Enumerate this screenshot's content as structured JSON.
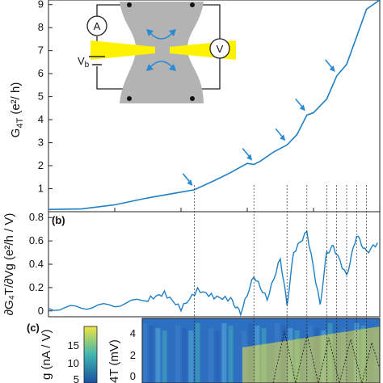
{
  "figure": {
    "panel_a": {
      "label": "",
      "ylabel_main": "G",
      "ylabel_sub": "4T",
      "ylabel_unit": " (e²/ h)"
    },
    "panel_b": {
      "label": "(b)",
      "ylabel": "∂G₄T/∂Vg (e²/h / V)"
    },
    "panel_c": {
      "label": "(c)",
      "colorbar_label": "g (nA / V)",
      "ylabel": "4T (mV)"
    },
    "inset": {
      "ammeter_label": "A",
      "voltmeter_label": "V",
      "source_label": "V",
      "source_sub": "b"
    }
  },
  "colors": {
    "trace": "#1f7fc4",
    "gate": "#ffee00",
    "sample": "#b3b3b3",
    "arrow": "#2a8ad4",
    "heatmap_high": "#f0e442",
    "heatmap_low": "#1a4fa0"
  },
  "chart_data": [
    {
      "type": "line",
      "panel": "a",
      "ylabel": "G4T (e²/h)",
      "ylim": [
        0,
        9.2
      ],
      "yticks": [
        "1",
        "2",
        "3",
        "4",
        "5",
        "6",
        "7",
        "8",
        "9"
      ],
      "x_range": [
        0,
        100
      ],
      "x_note": "x tick labels not visible",
      "series": [
        {
          "x": [
            0,
            10,
            20,
            30,
            38,
            44,
            50,
            55,
            60,
            62,
            64,
            68,
            72,
            75,
            78,
            80,
            84,
            87,
            90,
            93,
            96,
            100
          ],
          "y": [
            0.1,
            0.12,
            0.3,
            0.6,
            0.8,
            0.95,
            1.35,
            1.7,
            2.1,
            2.05,
            2.2,
            2.6,
            2.9,
            3.35,
            4.2,
            4.3,
            4.9,
            5.9,
            6.4,
            7.6,
            8.8,
            9.2
          ]
        }
      ],
      "annotations": [
        "plateau arrows near G = 1, 2, 3, 4, 5, 6"
      ]
    },
    {
      "type": "line",
      "panel": "b",
      "ylabel": "∂G4T/∂Vg (e²/h / V)",
      "ylim": [
        -0.05,
        0.85
      ],
      "yticks": [
        "0",
        "0.2",
        "0.4",
        "0.6",
        "0.8"
      ],
      "series": [
        {
          "x": [
            0,
            10,
            20,
            30,
            35,
            40,
            45,
            50,
            55,
            58,
            62,
            66,
            70,
            72,
            74,
            78,
            82,
            84,
            86,
            90,
            93,
            96,
            100
          ],
          "y": [
            0.02,
            0.03,
            0.05,
            0.1,
            0.15,
            0.02,
            0.18,
            0.12,
            0.1,
            -0.02,
            0.3,
            0.1,
            0.45,
            0.05,
            0.5,
            0.68,
            0.05,
            0.5,
            0.55,
            0.3,
            0.65,
            0.5,
            0.6
          ]
        }
      ]
    },
    {
      "type": "heatmap",
      "panel": "c",
      "ylabel": "V4T (mV)",
      "yticks": [
        "0",
        "2",
        "4"
      ],
      "colorbar_ticks": [
        "5",
        "10",
        "15"
      ],
      "colorbar_label": "g (nA / V)"
    }
  ]
}
